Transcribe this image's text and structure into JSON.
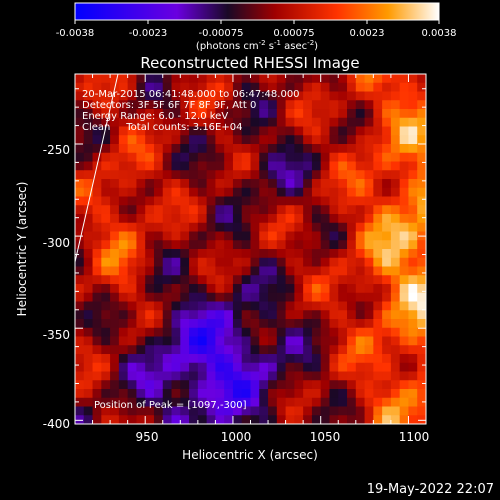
{
  "colorbar": {
    "ticks": [
      "-0.0038",
      "-0.0023",
      "-0.00075",
      "0.00075",
      "0.0023",
      "0.0038"
    ],
    "units": "(photons cm",
    "units_exp1": "-2",
    "units_mid": " s",
    "units_exp2": "-1",
    "units_mid2": " asec",
    "units_exp3": "-2",
    "units_end": ")",
    "colormap": [
      "#0000ff",
      "#7a00ff",
      "#1a0a22",
      "#b00000",
      "#ff3b00",
      "#ff9a00",
      "#ffffff"
    ]
  },
  "chart_data": {
    "type": "heatmap",
    "title": "Reconstructed RHESSI Image",
    "xlabel": "Heliocentric X (arcsec)",
    "ylabel": "Heliocentric Y (arcsec)",
    "xlim": [
      910,
      1110
    ],
    "ylim": [
      -402,
      -212
    ],
    "xticks": [
      950,
      1000,
      1050,
      1100
    ],
    "yticks": [
      -250,
      -300,
      -350,
      -400
    ],
    "zlim": [
      -0.0038,
      0.0038
    ],
    "info_lines": [
      "20-Mar-2015 06:41:48.000 to 06:47:48.000",
      "Detectors: 3F 5F 6F 7F 8F 9F, Att 0",
      "Energy Range: 6.0 - 12.0 keV",
      "Clean     Total counts: 3.16E+04"
    ],
    "peak_label": "Position of Peak = [1097,-300]",
    "peak": [
      1097,
      -300
    ]
  },
  "footer_timestamp": "19-May-2022 22:07"
}
